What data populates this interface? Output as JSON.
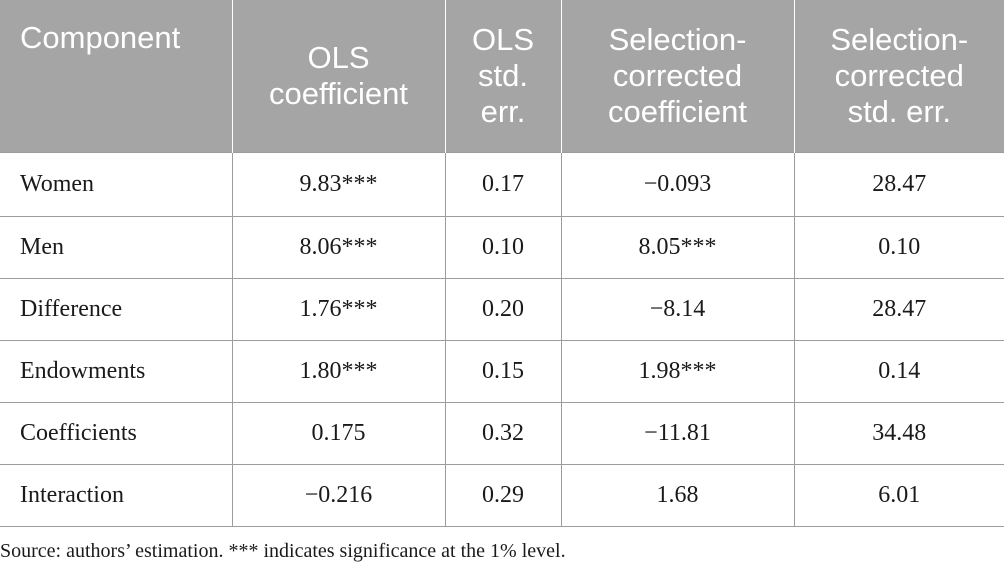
{
  "table": {
    "headers": [
      "Component",
      "OLS coefficient",
      "OLS std. err.",
      "Selection-corrected coefficient",
      "Selection-corrected std. err."
    ],
    "rows": [
      [
        "Women",
        "9.83***",
        "0.17",
        "−0.093",
        "28.47"
      ],
      [
        "Men",
        "8.06***",
        "0.10",
        "8.05***",
        "0.10"
      ],
      [
        "Difference",
        "1.76***",
        "0.20",
        "−8.14",
        "28.47"
      ],
      [
        "Endowments",
        "1.80***",
        "0.15",
        "1.98***",
        "0.14"
      ],
      [
        "Coefficients",
        "0.175",
        "0.32",
        "−11.81",
        "34.48"
      ],
      [
        "Interaction",
        "−0.216",
        "0.29",
        "1.68",
        "6.01"
      ]
    ]
  },
  "footnote": "Source: authors’ estimation. *** indicates significance at the 1% level.",
  "colors": {
    "header_background": "#a5a5a5",
    "header_text": "#ffffff",
    "border": "#9c9c9c",
    "text": "#1a1a1a"
  }
}
